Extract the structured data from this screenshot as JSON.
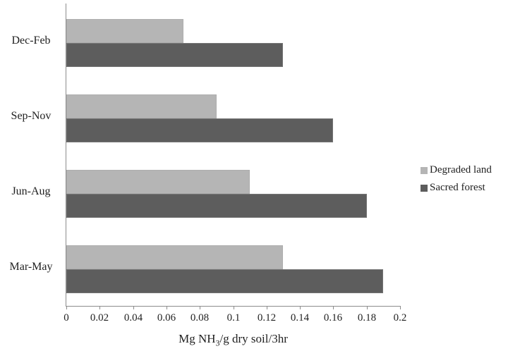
{
  "chart_data": {
    "type": "bar",
    "orientation": "horizontal",
    "title": "",
    "categories": [
      "Dec-Feb",
      "Sep-Nov",
      "Jun-Aug",
      "Mar-May"
    ],
    "series": [
      {
        "name": "Degraded land",
        "color": "#b5b5b5",
        "values": [
          0.07,
          0.09,
          0.11,
          0.13
        ]
      },
      {
        "name": "Sacred forest",
        "color": "#5d5d5d",
        "values": [
          0.13,
          0.16,
          0.18,
          0.19
        ]
      }
    ],
    "xlabel": "Mg NH3/g dry soil/3hr",
    "xlabel_parts": {
      "prefix": "Mg NH",
      "subscript": "3",
      "suffix": "/g dry soil/3hr"
    },
    "ylabel": "",
    "xlim": [
      0,
      0.2
    ],
    "xticks": [
      0,
      0.02,
      0.04,
      0.06,
      0.08,
      0.1,
      0.12,
      0.14,
      0.16,
      0.18,
      0.2
    ],
    "xtick_labels": [
      "0",
      "0.02",
      "0.04",
      "0.06",
      "0.08",
      "0.1",
      "0.12",
      "0.14",
      "0.16",
      "0.18",
      "0.2"
    ],
    "grid": false,
    "legend_position": "right-center",
    "legend_labels": [
      "Degraded land",
      "Sacred forest"
    ]
  },
  "colors": {
    "background": "#ffffff",
    "axis": "#8c8c8c",
    "text": "#1f1f1f",
    "degraded_land": "#b5b5b5",
    "sacred_forest": "#5d5d5d"
  }
}
